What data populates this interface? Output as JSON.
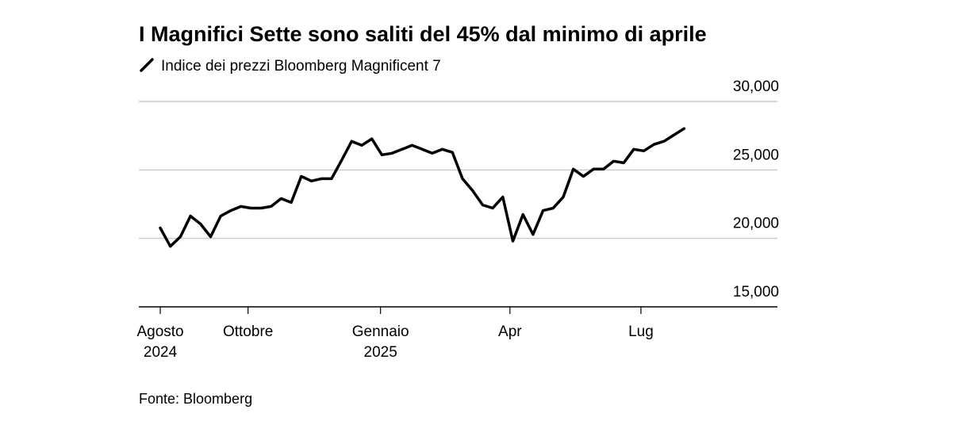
{
  "chart_data": {
    "type": "line",
    "title": "I Magnifici Sette sono saliti del 45% dal minimo di aprile",
    "series": [
      {
        "name": "Indice dei prezzi Bloomberg Magnificent 7",
        "color": "#000000",
        "values": [
          20760,
          19420,
          20120,
          21630,
          21050,
          20120,
          21630,
          22030,
          22330,
          22210,
          22210,
          22330,
          22910,
          22620,
          24530,
          24190,
          24360,
          24360,
          25700,
          27090,
          26800,
          27270,
          26100,
          26220,
          26510,
          26800,
          26510,
          26220,
          26510,
          26280,
          24360,
          23490,
          22440,
          22210,
          23020,
          19800,
          21740,
          20290,
          22030,
          22210,
          23020,
          25060,
          24530,
          25060,
          25060,
          25640,
          25520,
          26510,
          26390,
          26860,
          27090,
          27560,
          28020
        ]
      }
    ],
    "xlim": [
      -2.13,
      61.26
    ],
    "xticks": [
      {
        "value": 0,
        "label": [
          "Agosto",
          "2024"
        ]
      },
      {
        "value": 8.71,
        "label": [
          "Ottobre"
        ]
      },
      {
        "value": 21.86,
        "label": [
          "Gennaio",
          "2025"
        ]
      },
      {
        "value": 34.71,
        "label": [
          "Apr"
        ]
      },
      {
        "value": 47.71,
        "label": [
          "Lug"
        ]
      }
    ],
    "ylim": [
      15000,
      30000
    ],
    "yticks": [
      {
        "value": 15000,
        "label": "15,000"
      },
      {
        "value": 20000,
        "label": "20,000"
      },
      {
        "value": 25000,
        "label": "25,000"
      },
      {
        "value": 30000,
        "label": "30,000"
      }
    ],
    "grid": true,
    "source": "Fonte: Bloomberg"
  }
}
